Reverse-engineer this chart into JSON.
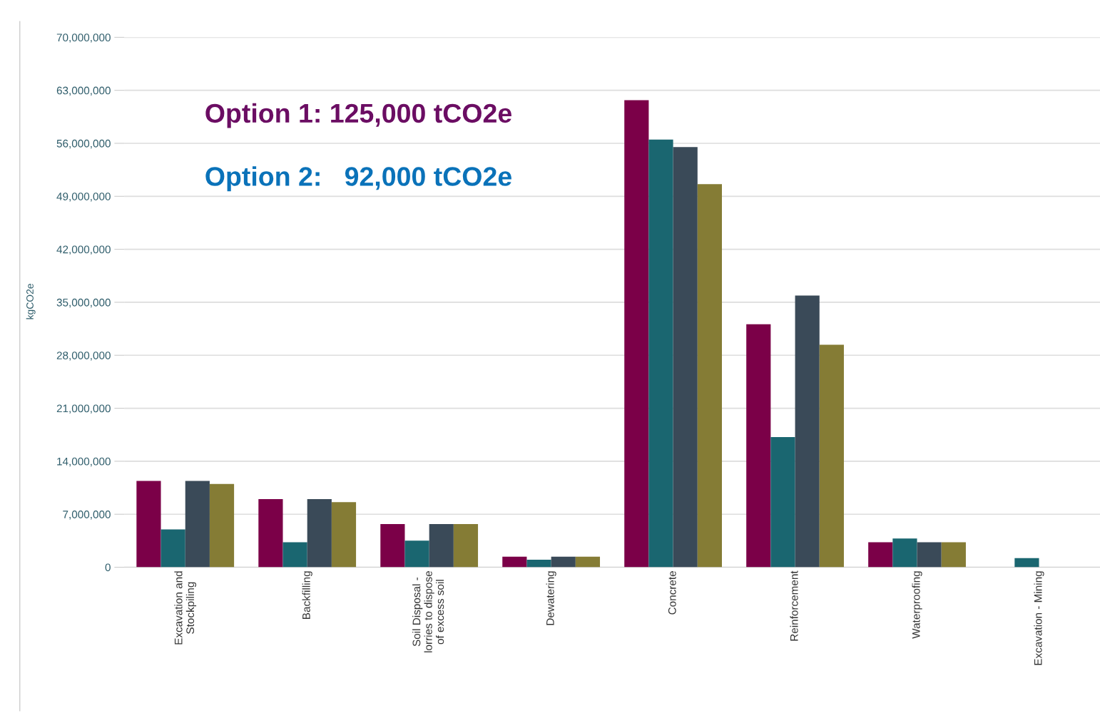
{
  "chart_data": {
    "type": "bar",
    "ylabel": "kgCO2e",
    "categories": [
      "Excavation and\nStockpiling",
      "Backfilling",
      "Soil Disposal -\nlorries to dispose\nof excess soil",
      "Dewatering",
      "Concrete",
      "Reinforcement",
      "Waterproofing",
      "Excavation - Mining"
    ],
    "series": [
      {
        "color": "#7b0048",
        "values": [
          11400000,
          9000000,
          5700000,
          1400000,
          61700000,
          32100000,
          3300000,
          null
        ]
      },
      {
        "color": "#1a6670",
        "values": [
          5000000,
          3300000,
          3500000,
          1000000,
          56500000,
          17200000,
          3800000,
          1200000
        ]
      },
      {
        "color": "#3a4a58",
        "values": [
          11400000,
          9000000,
          5700000,
          1400000,
          55500000,
          35900000,
          3300000,
          null
        ]
      },
      {
        "color": "#857c35",
        "values": [
          11000000,
          8600000,
          5700000,
          1400000,
          50600000,
          29400000,
          3300000,
          null
        ]
      }
    ],
    "ylim": [
      0,
      70000000
    ],
    "yticks": [
      0,
      {
        "value": 7000000,
        "label": "7,000,000"
      },
      {
        "value": 14000000,
        "label": "14,000,000"
      },
      {
        "value": 21000000,
        "label": "21,000,000"
      },
      {
        "value": 28000000,
        "label": "28,000,000"
      },
      {
        "value": 35000000,
        "label": "35,000,000"
      },
      {
        "value": 42000000,
        "label": "42,000,000"
      },
      {
        "value": 49000000,
        "label": "49,000,000"
      },
      {
        "value": 56000000,
        "label": "56,000,000"
      },
      {
        "value": 63000000,
        "label": "63,000,000"
      },
      {
        "value": 70000000,
        "label": "70,000,000"
      }
    ],
    "grid": "y",
    "annotations": [
      "Option 1: 125,000 tCO2e",
      "Option 2:   92,000 tCO2e"
    ]
  }
}
